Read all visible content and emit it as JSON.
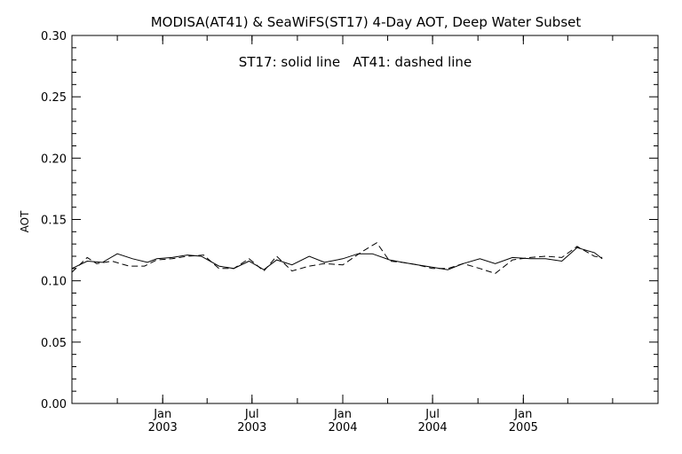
{
  "chart_data": {
    "type": "line",
    "title": "MODISA(AT41) & SeaWiFS(ST17) 4-Day AOT, Deep Water Subset",
    "annotation": "ST17: solid line   AT41: dashed line",
    "xlabel": "",
    "ylabel": "AOT",
    "ylim": [
      0.0,
      0.3
    ],
    "yticks": [
      "0.00",
      "0.05",
      "0.10",
      "0.15",
      "0.20",
      "0.25",
      "0.30"
    ],
    "xlim": [
      "2002-07-01",
      "2005-10-01"
    ],
    "xticks": [
      {
        "date": "2003-01-01",
        "month": "Jan",
        "year": "2003"
      },
      {
        "date": "2003-07-01",
        "month": "Jul",
        "year": "2003"
      },
      {
        "date": "2004-01-01",
        "month": "Jan",
        "year": "2004"
      },
      {
        "date": "2004-07-01",
        "month": "Jul",
        "year": "2004"
      },
      {
        "date": "2005-01-01",
        "month": "Jan",
        "year": "2005"
      }
    ],
    "grid": false,
    "series": [
      {
        "name": "ST17",
        "style": "solid",
        "color": "#000000",
        "points": [
          [
            "2002-07-01",
            0.11
          ],
          [
            "2002-08-01",
            0.116
          ],
          [
            "2002-09-01",
            0.115
          ],
          [
            "2002-10-01",
            0.122
          ],
          [
            "2002-11-01",
            0.118
          ],
          [
            "2002-12-01",
            0.115
          ],
          [
            "2002-12-20",
            0.118
          ],
          [
            "2003-01-20",
            0.119
          ],
          [
            "2003-02-20",
            0.121
          ],
          [
            "2003-03-20",
            0.12
          ],
          [
            "2003-04-25",
            0.112
          ],
          [
            "2003-05-25",
            0.11
          ],
          [
            "2003-06-25",
            0.116
          ],
          [
            "2003-07-25",
            0.109
          ],
          [
            "2003-08-20",
            0.117
          ],
          [
            "2003-09-20",
            0.113
          ],
          [
            "2003-10-25",
            0.12
          ],
          [
            "2003-11-25",
            0.115
          ],
          [
            "2004-01-01",
            0.118
          ],
          [
            "2004-02-01",
            0.122
          ],
          [
            "2004-03-01",
            0.122
          ],
          [
            "2004-04-05",
            0.117
          ],
          [
            "2004-05-01",
            0.115
          ],
          [
            "2004-06-01",
            0.113
          ],
          [
            "2004-07-01",
            0.111
          ],
          [
            "2004-08-01",
            0.109
          ],
          [
            "2004-09-01",
            0.114
          ],
          [
            "2004-10-05",
            0.118
          ],
          [
            "2004-11-05",
            0.114
          ],
          [
            "2004-12-10",
            0.119
          ],
          [
            "2005-01-15",
            0.118
          ],
          [
            "2005-02-15",
            0.118
          ],
          [
            "2005-03-20",
            0.116
          ],
          [
            "2005-04-20",
            0.127
          ],
          [
            "2005-05-25",
            0.123
          ],
          [
            "2005-06-10",
            0.118
          ]
        ]
      },
      {
        "name": "AT41",
        "style": "dashed",
        "color": "#000000",
        "points": [
          [
            "2002-07-01",
            0.107
          ],
          [
            "2002-08-01",
            0.119
          ],
          [
            "2002-08-20",
            0.114
          ],
          [
            "2002-09-20",
            0.116
          ],
          [
            "2002-10-25",
            0.112
          ],
          [
            "2002-11-25",
            0.112
          ],
          [
            "2002-12-20",
            0.117
          ],
          [
            "2003-01-20",
            0.118
          ],
          [
            "2003-02-20",
            0.12
          ],
          [
            "2003-03-25",
            0.121
          ],
          [
            "2003-04-25",
            0.11
          ],
          [
            "2003-05-25",
            0.11
          ],
          [
            "2003-06-25",
            0.118
          ],
          [
            "2003-07-25",
            0.108
          ],
          [
            "2003-08-20",
            0.12
          ],
          [
            "2003-09-20",
            0.108
          ],
          [
            "2003-10-25",
            0.112
          ],
          [
            "2003-11-25",
            0.114
          ],
          [
            "2004-01-01",
            0.113
          ],
          [
            "2004-02-10",
            0.124
          ],
          [
            "2004-03-10",
            0.131
          ],
          [
            "2004-04-05",
            0.116
          ],
          [
            "2004-05-01",
            0.115
          ],
          [
            "2004-06-01",
            0.113
          ],
          [
            "2004-07-01",
            0.11
          ],
          [
            "2004-08-01",
            0.11
          ],
          [
            "2004-09-01",
            0.114
          ],
          [
            "2004-10-05",
            0.11
          ],
          [
            "2004-11-05",
            0.106
          ],
          [
            "2004-12-10",
            0.117
          ],
          [
            "2005-01-15",
            0.119
          ],
          [
            "2005-02-15",
            0.12
          ],
          [
            "2005-03-20",
            0.119
          ],
          [
            "2005-04-20",
            0.128
          ],
          [
            "2005-05-25",
            0.12
          ],
          [
            "2005-06-10",
            0.119
          ]
        ]
      }
    ]
  }
}
